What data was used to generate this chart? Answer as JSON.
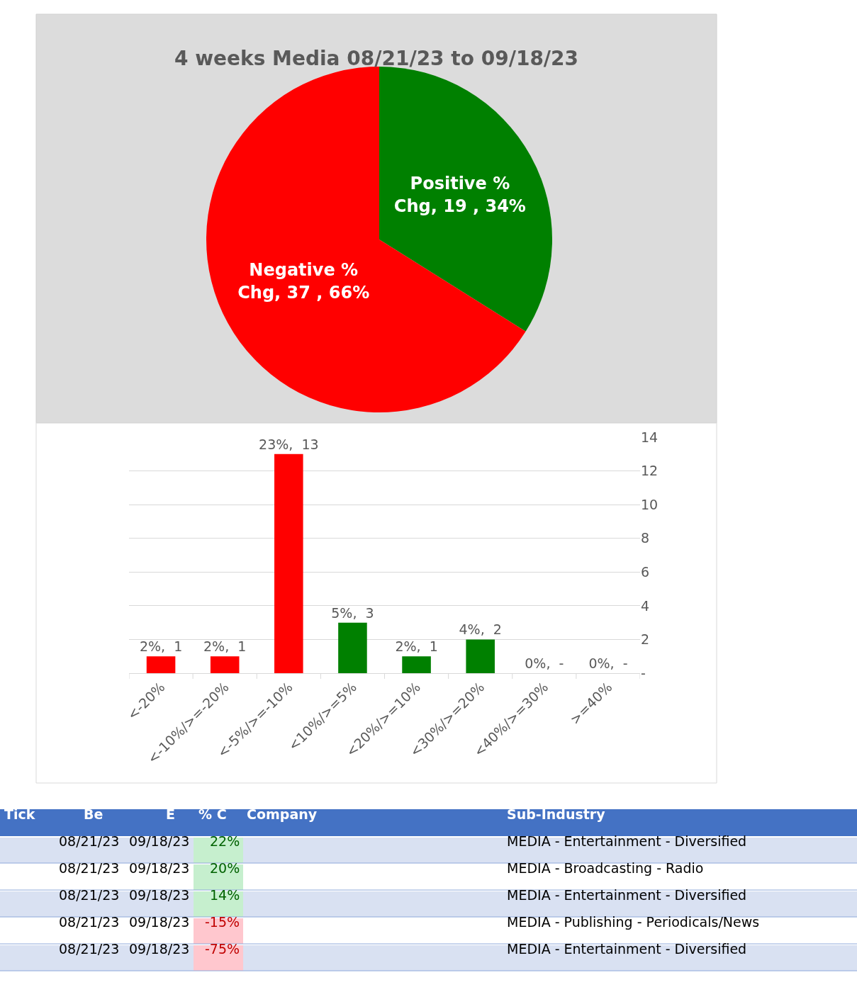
{
  "chart_data": [
    {
      "type": "pie",
      "title": "4 weeks Media 08/21/23 to 09/18/23",
      "categories": [
        "Positive % Chg",
        "Negative % Chg"
      ],
      "values": [
        19,
        37
      ],
      "colors": [
        "#008000",
        "#ff0000"
      ],
      "value_labels": [
        "19 , 34%",
        "37 , 66%"
      ]
    },
    {
      "type": "bar",
      "categories": [
        "<-20%",
        "<-10%/>=-20%",
        "<-5%/>=-10%",
        "<10%/>=5%",
        "<20%/>=10%",
        "<30%/>=20%",
        "<40%/>=30%",
        ">=40%"
      ],
      "values": [
        1,
        1,
        13,
        3,
        1,
        2,
        0,
        0
      ],
      "colors": [
        "#ff0000",
        "#ff0000",
        "#ff0000",
        "#008000",
        "#008000",
        "#008000",
        "#008000",
        "#008000"
      ],
      "value_labels": [
        "2%,  1",
        "2%,  1",
        "23%,  13",
        "5%,  3",
        "2%,  1",
        "4%,  2",
        "0%,  -",
        "0%,  -"
      ],
      "ylim": [
        0,
        14
      ],
      "yticks": [
        {
          "value": 0,
          "label": "-"
        },
        2,
        4,
        6,
        8,
        10,
        12,
        14
      ],
      "grid": "y"
    },
    {
      "type": "other",
      "annotations": [
        "Tick",
        "Be",
        "E",
        "% C",
        "Company",
        "Sub-Industry",
        "08/21/23",
        "09/18/23",
        "22%",
        "MEDIA - Entertainment - Diversified",
        "08/21/23",
        "09/18/23",
        "20%",
        "MEDIA - Broadcasting - Radio",
        "08/21/23",
        "09/18/23",
        "14%",
        "MEDIA - Entertainment - Diversified",
        "08/21/23",
        "09/18/23",
        "-15%",
        "MEDIA - Publishing - Periodicals/News",
        "08/21/23",
        "09/18/23",
        "-75%",
        "MEDIA - Entertainment - Diversified"
      ]
    }
  ]
}
